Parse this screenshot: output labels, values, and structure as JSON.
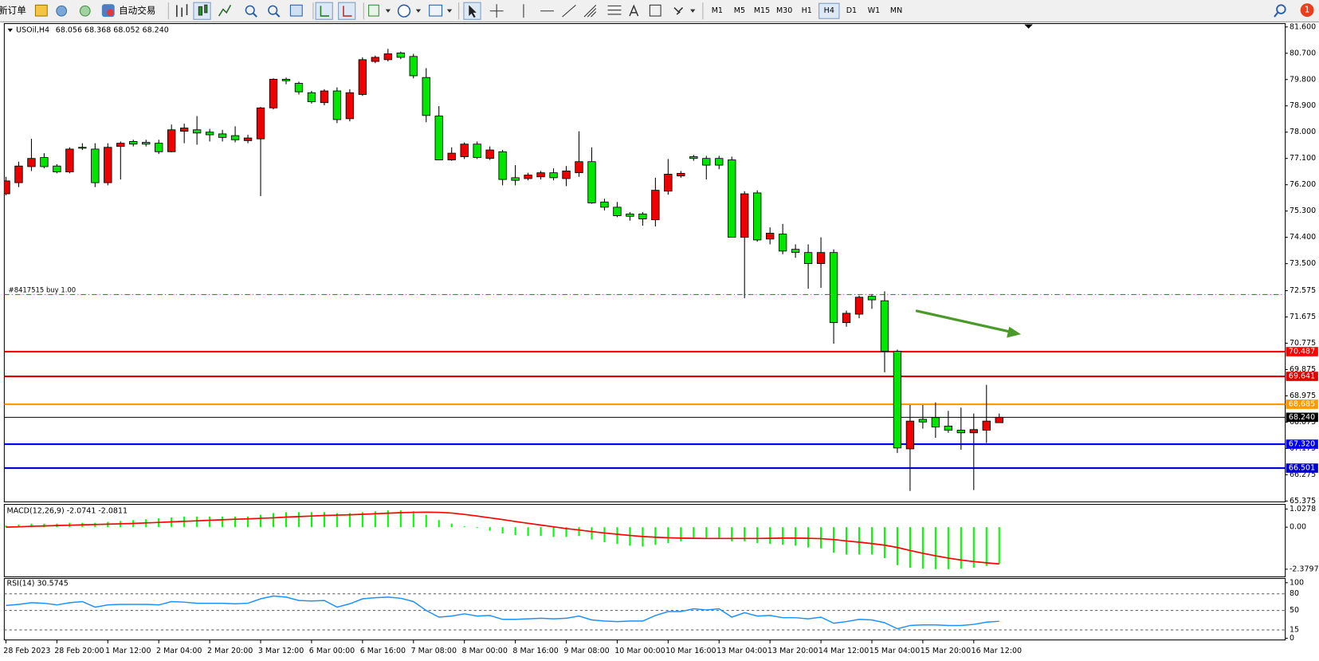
{
  "toolbar": {
    "new_order": "新订单",
    "auto_trading": "自动交易",
    "timeframes": [
      "M1",
      "M5",
      "M15",
      "M30",
      "H1",
      "H4",
      "D1",
      "W1",
      "MN"
    ],
    "active_timeframe": "H4",
    "notifications": 1
  },
  "chart": {
    "type": "candlestick",
    "title": "USOil,H4",
    "ohlc_text": "68.056 68.368 68.052 68.240",
    "up_color": "#ee0000",
    "down_color": "#00e600",
    "ylim": [
      65.375,
      81.6
    ],
    "yticks": [
      {
        "value": 81.6,
        "label": "81.600"
      },
      {
        "value": 80.7,
        "label": "80.700"
      },
      {
        "value": 79.8,
        "label": "79.800"
      },
      {
        "value": 78.9,
        "label": "78.900"
      },
      {
        "value": 78,
        "label": "78.000"
      },
      {
        "value": 77.1,
        "label": "77.100"
      },
      {
        "value": 76.2,
        "label": "76.200"
      },
      {
        "value": 75.3,
        "label": "75.300"
      },
      {
        "value": 74.4,
        "label": "74.400"
      },
      {
        "value": 73.5,
        "label": "73.500"
      },
      {
        "value": 72.575,
        "label": "72.575"
      },
      {
        "value": 71.675,
        "label": "71.675"
      },
      {
        "value": 70.775,
        "label": "70.775"
      },
      {
        "value": 69.875,
        "label": "69.875"
      },
      {
        "value": 68.975,
        "label": "68.975"
      },
      {
        "value": 68.075,
        "label": "68.075"
      },
      {
        "value": 67.175,
        "label": "67.175"
      },
      {
        "value": 66.275,
        "label": "66.275"
      },
      {
        "value": 65.375,
        "label": "65.375"
      }
    ],
    "levels": [
      {
        "value": 70.487,
        "label": "70.487",
        "color": "#ff0000"
      },
      {
        "value": 69.641,
        "label": "69.641",
        "color": "#e00000"
      },
      {
        "value": 68.685,
        "label": "68.685",
        "color": "#ff9900"
      },
      {
        "value": 68.24,
        "label": "68.240",
        "color": "#000000"
      },
      {
        "value": 67.32,
        "label": "67.320",
        "color": "#0000ee"
      },
      {
        "value": 66.501,
        "label": "66.501",
        "color": "#0000cc"
      }
    ],
    "order": {
      "label": "#8417515 buy 1.00",
      "value": 72.44,
      "color": "#00b000"
    },
    "time_labels": [
      "28 Feb 2023",
      "28 Feb 20:00",
      "1 Mar 12:00",
      "2 Mar 04:00",
      "2 Mar 20:00",
      "3 Mar 12:00",
      "6 Mar 00:00",
      "6 Mar 16:00",
      "7 Mar 08:00",
      "8 Mar 00:00",
      "8 Mar 16:00",
      "9 Mar 08:00",
      "10 Mar 00:00",
      "10 Mar 16:00",
      "13 Mar 04:00",
      "13 Mar 20:00",
      "14 Mar 12:00",
      "15 Mar 04:00",
      "15 Mar 20:00",
      "16 Mar 12:00"
    ],
    "candles": [
      [
        75.89,
        76.47,
        75.84,
        76.33
      ],
      [
        76.27,
        76.99,
        76.12,
        76.84
      ],
      [
        76.82,
        77.77,
        76.67,
        77.1
      ],
      [
        77.13,
        77.28,
        76.76,
        76.82
      ],
      [
        76.84,
        76.9,
        76.59,
        76.64
      ],
      [
        76.64,
        77.48,
        76.59,
        77.42
      ],
      [
        77.48,
        77.62,
        77.39,
        77.45
      ],
      [
        77.42,
        77.62,
        76.12,
        76.27
      ],
      [
        76.27,
        77.62,
        76.18,
        77.48
      ],
      [
        77.51,
        77.68,
        76.38,
        77.62
      ],
      [
        77.68,
        77.74,
        77.51,
        77.59
      ],
      [
        77.65,
        77.74,
        77.51,
        77.59
      ],
      [
        77.62,
        77.74,
        77.25,
        77.33
      ],
      [
        77.33,
        78.26,
        77.31,
        78.08
      ],
      [
        78.03,
        78.29,
        77.62,
        78.14
      ],
      [
        78.08,
        78.55,
        77.57,
        77.97
      ],
      [
        78.0,
        78.11,
        77.68,
        77.91
      ],
      [
        77.94,
        78.08,
        77.68,
        77.82
      ],
      [
        77.88,
        78.2,
        77.65,
        77.74
      ],
      [
        77.71,
        77.91,
        77.62,
        77.8
      ],
      [
        77.77,
        78.86,
        75.81,
        78.83
      ],
      [
        78.83,
        79.84,
        78.78,
        79.81
      ],
      [
        79.81,
        79.87,
        79.64,
        79.76
      ],
      [
        79.67,
        79.73,
        79.29,
        79.38
      ],
      [
        79.35,
        79.41,
        78.98,
        79.04
      ],
      [
        79.01,
        79.47,
        78.92,
        79.41
      ],
      [
        79.41,
        79.53,
        78.31,
        78.43
      ],
      [
        78.46,
        79.47,
        78.37,
        79.35
      ],
      [
        79.29,
        80.56,
        79.24,
        80.48
      ],
      [
        80.42,
        80.62,
        80.36,
        80.56
      ],
      [
        80.48,
        80.85,
        80.42,
        80.68
      ],
      [
        80.71,
        80.76,
        80.5,
        80.56
      ],
      [
        80.59,
        80.68,
        79.84,
        79.93
      ],
      [
        79.87,
        80.19,
        78.34,
        78.57
      ],
      [
        78.55,
        78.89,
        77.05,
        77.05
      ],
      [
        77.05,
        77.48,
        77.02,
        77.28
      ],
      [
        77.16,
        77.65,
        77.08,
        77.59
      ],
      [
        77.59,
        77.68,
        77.08,
        77.13
      ],
      [
        77.1,
        77.51,
        77.05,
        77.39
      ],
      [
        77.33,
        77.39,
        76.18,
        76.38
      ],
      [
        76.44,
        76.87,
        76.18,
        76.35
      ],
      [
        76.41,
        76.61,
        76.35,
        76.53
      ],
      [
        76.47,
        76.67,
        76.38,
        76.61
      ],
      [
        76.61,
        76.76,
        76.35,
        76.44
      ],
      [
        76.41,
        76.84,
        76.15,
        76.67
      ],
      [
        76.61,
        78.03,
        76.47,
        76.99
      ],
      [
        76.99,
        77.48,
        75.55,
        75.58
      ],
      [
        75.61,
        75.72,
        75.32,
        75.43
      ],
      [
        75.43,
        75.61,
        75.09,
        75.14
      ],
      [
        75.2,
        75.26,
        74.97,
        75.12
      ],
      [
        75.2,
        75.26,
        74.8,
        75.03
      ],
      [
        75.0,
        76.44,
        74.77,
        76.01
      ],
      [
        75.98,
        77.08,
        75.86,
        76.56
      ],
      [
        76.5,
        76.67,
        76.44,
        76.59
      ],
      [
        77.16,
        77.22,
        77.02,
        77.1
      ],
      [
        77.1,
        77.19,
        76.38,
        76.87
      ],
      [
        77.1,
        77.19,
        76.73,
        76.87
      ],
      [
        77.05,
        77.16,
        74.4,
        74.4
      ],
      [
        74.4,
        75.98,
        72.32,
        75.89
      ],
      [
        75.92,
        76.01,
        74.25,
        74.31
      ],
      [
        74.34,
        74.74,
        74.16,
        74.54
      ],
      [
        74.51,
        74.86,
        73.82,
        73.93
      ],
      [
        73.99,
        74.16,
        73.7,
        73.88
      ],
      [
        73.88,
        74.16,
        72.64,
        73.5
      ],
      [
        73.5,
        74.4,
        72.67,
        73.88
      ],
      [
        73.88,
        73.99,
        70.76,
        71.48
      ],
      [
        71.48,
        71.89,
        71.34,
        71.8
      ],
      [
        71.77,
        72.41,
        71.63,
        72.35
      ],
      [
        72.38,
        72.46,
        71.95,
        72.26
      ],
      [
        72.23,
        72.55,
        69.78,
        70.5
      ],
      [
        70.5,
        70.56,
        67.02,
        67.19
      ],
      [
        67.16,
        68.66,
        65.72,
        68.11
      ],
      [
        68.17,
        68.66,
        67.85,
        68.08
      ],
      [
        68.23,
        68.75,
        67.54,
        67.91
      ],
      [
        67.94,
        68.46,
        67.71,
        67.8
      ],
      [
        67.8,
        68.57,
        67.13,
        67.71
      ],
      [
        67.71,
        68.37,
        65.75,
        67.82
      ],
      [
        67.8,
        69.35,
        67.36,
        68.11
      ],
      [
        68.056,
        68.368,
        68.052,
        68.24
      ]
    ]
  },
  "macd": {
    "title": "MACD(12,26,9) -2.0741 -2.0811",
    "hist_color": "#00ff00",
    "signal_color": "#ff0000",
    "ylim": [
      -2.81,
      1.29
    ],
    "yticks": [
      {
        "value": 1.0278,
        "label": "1.0278"
      },
      {
        "value": 0,
        "label": "0.00"
      },
      {
        "value": -2.3797,
        "label": "-2.3797"
      }
    ],
    "histogram": [
      0.1,
      0.15,
      0.2,
      0.2,
      0.2,
      0.25,
      0.25,
      0.25,
      0.3,
      0.35,
      0.4,
      0.45,
      0.5,
      0.55,
      0.6,
      0.6,
      0.6,
      0.6,
      0.6,
      0.6,
      0.7,
      0.8,
      0.85,
      0.85,
      0.85,
      0.85,
      0.8,
      0.8,
      0.85,
      0.9,
      0.95,
      0.95,
      0.9,
      0.7,
      0.4,
      0.2,
      0.05,
      -0.05,
      -0.2,
      -0.35,
      -0.45,
      -0.5,
      -0.5,
      -0.55,
      -0.55,
      -0.5,
      -0.7,
      -0.85,
      -0.95,
      -1.05,
      -1.1,
      -1.0,
      -0.9,
      -0.8,
      -0.65,
      -0.6,
      -0.6,
      -0.8,
      -0.8,
      -0.9,
      -0.95,
      -1.0,
      -1.05,
      -1.15,
      -1.2,
      -1.45,
      -1.55,
      -1.55,
      -1.55,
      -1.75,
      -2.15,
      -2.3,
      -2.35,
      -2.38,
      -2.38,
      -2.35,
      -2.3,
      -2.2,
      -2.0741
    ],
    "signal": [
      0.0,
      0.02,
      0.05,
      0.07,
      0.09,
      0.11,
      0.13,
      0.15,
      0.17,
      0.19,
      0.21,
      0.24,
      0.27,
      0.3,
      0.33,
      0.36,
      0.39,
      0.42,
      0.45,
      0.47,
      0.5,
      0.53,
      0.57,
      0.6,
      0.63,
      0.66,
      0.68,
      0.7,
      0.73,
      0.76,
      0.79,
      0.82,
      0.84,
      0.85,
      0.84,
      0.8,
      0.72,
      0.63,
      0.53,
      0.43,
      0.32,
      0.22,
      0.12,
      0.02,
      -0.08,
      -0.16,
      -0.25,
      -0.33,
      -0.4,
      -0.47,
      -0.53,
      -0.57,
      -0.6,
      -0.62,
      -0.63,
      -0.64,
      -0.64,
      -0.64,
      -0.64,
      -0.64,
      -0.63,
      -0.62,
      -0.62,
      -0.63,
      -0.65,
      -0.7,
      -0.78,
      -0.85,
      -0.93,
      -1.02,
      -1.15,
      -1.32,
      -1.48,
      -1.62,
      -1.75,
      -1.86,
      -1.95,
      -2.02,
      -2.0811
    ]
  },
  "rsi": {
    "title": "RSI(14) 30.5745",
    "color": "#1e90ff",
    "ylim": [
      0,
      100
    ],
    "yticks": [
      100,
      80,
      50,
      15,
      0
    ],
    "values": [
      59,
      61,
      64,
      63,
      60,
      64,
      66,
      56,
      60,
      61,
      61,
      61,
      60,
      66,
      65,
      63,
      63,
      63,
      62,
      63,
      71,
      76,
      74,
      68,
      67,
      68,
      56,
      62,
      71,
      73,
      74,
      72,
      66,
      50,
      38,
      40,
      44,
      40,
      41,
      34,
      34,
      35,
      36,
      35,
      36,
      40,
      33,
      31,
      30,
      31,
      31,
      41,
      48,
      48,
      53,
      51,
      53,
      38,
      46,
      40,
      41,
      37,
      37,
      35,
      38,
      27,
      30,
      34,
      33,
      28,
      17,
      23,
      24,
      24,
      23,
      23,
      25,
      29,
      30.5745
    ]
  }
}
